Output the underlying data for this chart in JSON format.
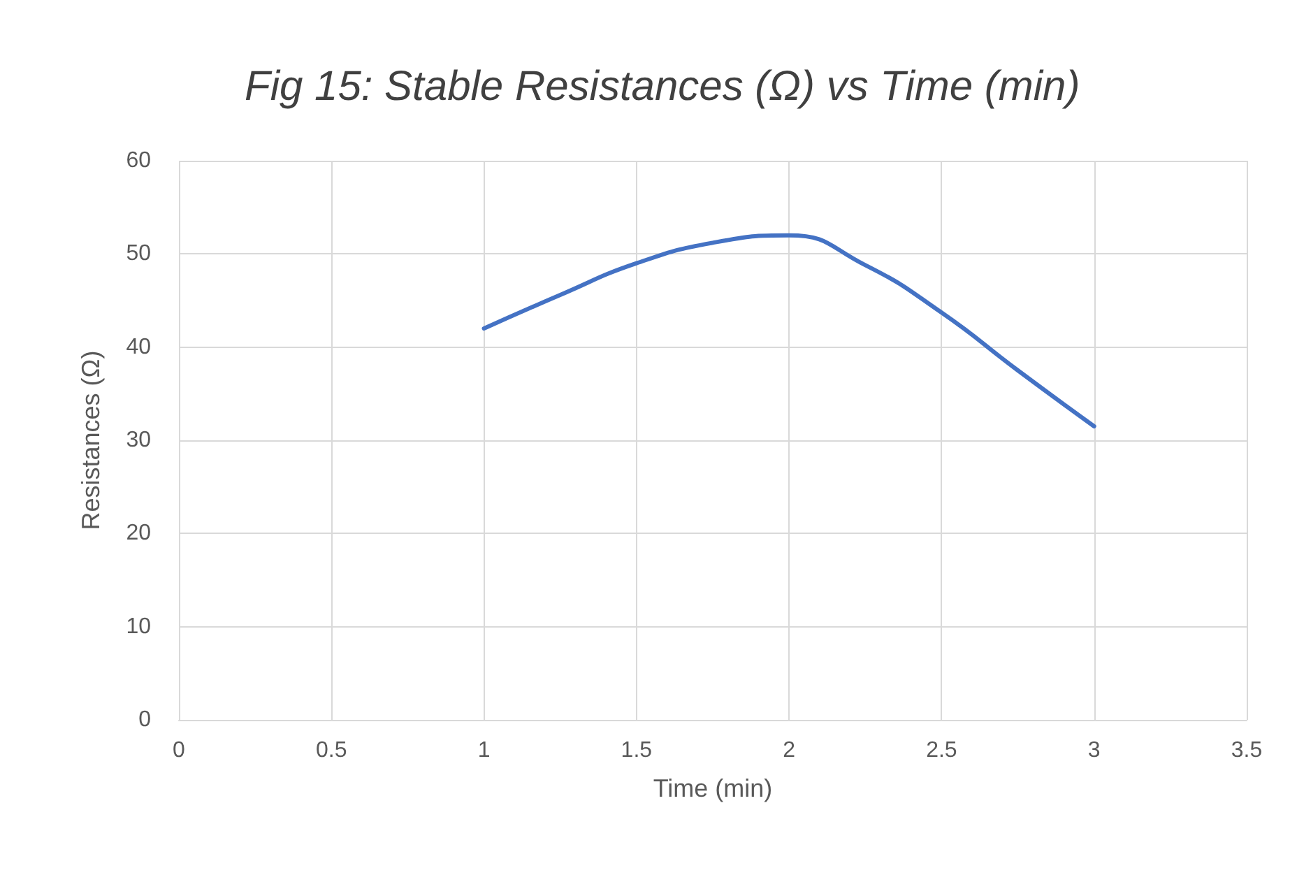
{
  "chart_data": {
    "type": "line",
    "title": "Fig 15: Stable Resistances (Ω) vs Time (min)",
    "xlabel": "Time (min)",
    "ylabel": "Resistances (Ω)",
    "series": [
      {
        "color": "#4472c4",
        "x": [
          1,
          1.25,
          1.5,
          1.75,
          2,
          2.25,
          2.5,
          2.75,
          3
        ],
        "values": [
          42,
          45.6,
          49,
          51.2,
          52,
          48.8,
          43.7,
          37.5,
          31.5
        ]
      }
    ],
    "xlim": [
      0,
      3.5
    ],
    "xticks": [
      0,
      0.5,
      1,
      1.5,
      2,
      2.5,
      3,
      3.5
    ],
    "ylim": [
      0,
      60
    ],
    "yticks": [
      0,
      10,
      20,
      30,
      40,
      50,
      60
    ],
    "grid": true,
    "marker": "none",
    "line_style": "solid"
  }
}
